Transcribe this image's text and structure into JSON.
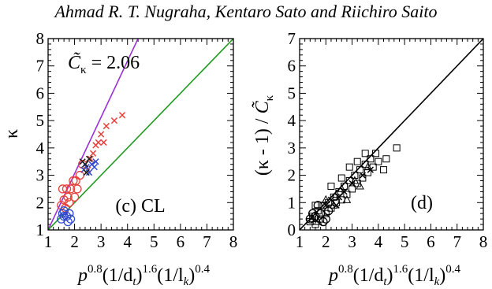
{
  "header": {
    "authors": "Ahmad R. T. Nugraha, Kentaro Sato and Riichiro Saito"
  },
  "chart_data": [
    {
      "type": "scatter",
      "panel_label": "(c) CL",
      "annotation": {
        "symbol": "C̃",
        "subscript": "κ",
        "value": "= 2.06"
      },
      "ylabel": "κ",
      "xlabel": {
        "base": "p",
        "exp1": "0.8",
        "mid1": "(1/d",
        "sub1": "t",
        "close1": ")",
        "exp2": "1.6",
        "mid2": "(1/l",
        "sub2": "k",
        "close2": ")",
        "exp3": "0.4"
      },
      "xlim": [
        1,
        8
      ],
      "ylim": [
        1,
        8
      ],
      "xticks": [
        "1",
        "2",
        "3",
        "4",
        "5",
        "6",
        "7",
        "8"
      ],
      "yticks": [
        "1",
        "2",
        "3",
        "4",
        "5",
        "6",
        "7",
        "8"
      ],
      "lines": [
        {
          "color": "#9b30d9",
          "slope": 2.06
        },
        {
          "color": "#1f9a1f",
          "slope": 1.0
        }
      ],
      "series": [
        {
          "marker": "circle",
          "color": "#e8403a",
          "points": [
            [
              1.5,
              1.9
            ],
            [
              1.6,
              2.1
            ],
            [
              1.55,
              2.5
            ],
            [
              1.7,
              2.5
            ],
            [
              1.75,
              2.2
            ],
            [
              1.85,
              2.5
            ],
            [
              1.95,
              2.8
            ],
            [
              2.05,
              2.8
            ],
            [
              2.1,
              2.5
            ],
            [
              2.2,
              3.0
            ],
            [
              2.3,
              3.4
            ],
            [
              1.65,
              1.8
            ],
            [
              2.0,
              2.2
            ],
            [
              1.8,
              2.0
            ]
          ]
        },
        {
          "marker": "circle",
          "color": "#2f49d1",
          "points": [
            [
              1.5,
              1.4
            ],
            [
              1.6,
              1.5
            ],
            [
              1.7,
              1.5
            ],
            [
              1.8,
              1.6
            ],
            [
              1.85,
              1.4
            ],
            [
              1.6,
              1.7
            ],
            [
              1.75,
              1.3
            ],
            [
              1.55,
              1.6
            ]
          ]
        },
        {
          "marker": "x",
          "color": "#e8403a",
          "points": [
            [
              2.5,
              3.2
            ],
            [
              2.6,
              3.6
            ],
            [
              2.7,
              3.8
            ],
            [
              2.8,
              4.1
            ],
            [
              2.9,
              4.2
            ],
            [
              3.0,
              4.5
            ],
            [
              3.1,
              4.2
            ],
            [
              3.2,
              4.8
            ],
            [
              3.5,
              5.0
            ],
            [
              3.8,
              5.2
            ]
          ]
        },
        {
          "marker": "x",
          "color": "#2f49d1",
          "points": [
            [
              2.35,
              3.2
            ],
            [
              2.45,
              3.3
            ],
            [
              2.55,
              3.1
            ],
            [
              2.65,
              3.4
            ],
            [
              2.8,
              3.5
            ],
            [
              2.75,
              3.3
            ]
          ]
        },
        {
          "marker": "x",
          "color": "#222222",
          "points": [
            [
              2.3,
              3.5
            ],
            [
              2.4,
              3.4
            ],
            [
              2.55,
              3.6
            ],
            [
              2.45,
              3.1
            ]
          ]
        }
      ]
    },
    {
      "type": "scatter",
      "panel_label": "(d)",
      "ylabel": {
        "prefix": "(κ - 1) / ",
        "symbol": "C̃",
        "subscript": "κ"
      },
      "xlabel": {
        "base": "p",
        "exp1": "0.8",
        "mid1": "(1/d",
        "sub1": "t",
        "close1": ")",
        "exp2": "1.6",
        "mid2": "(1/l",
        "sub2": "k",
        "close2": ")",
        "exp3": "0.4"
      },
      "xlim": [
        1,
        8
      ],
      "ylim": [
        0,
        7
      ],
      "xticks": [
        "1",
        "2",
        "3",
        "4",
        "5",
        "6",
        "7",
        "8"
      ],
      "yticks": [
        "0",
        "1",
        "2",
        "3",
        "4",
        "5",
        "6",
        "7"
      ],
      "lines": [
        {
          "color": "#000000",
          "slope": 1.0
        }
      ],
      "series": [
        {
          "marker": "square",
          "color": "#000000",
          "points": [
            [
              1.4,
              0.3
            ],
            [
              1.5,
              0.5
            ],
            [
              1.6,
              0.2
            ],
            [
              1.7,
              0.7
            ],
            [
              1.8,
              0.4
            ],
            [
              1.9,
              0.9
            ],
            [
              2.0,
              0.6
            ],
            [
              2.1,
              1.0
            ],
            [
              2.2,
              0.8
            ],
            [
              2.3,
              1.2
            ],
            [
              2.4,
              1.0
            ],
            [
              2.5,
              1.4
            ],
            [
              2.6,
              1.1
            ],
            [
              2.7,
              1.6
            ],
            [
              2.8,
              1.3
            ],
            [
              2.9,
              1.8
            ],
            [
              3.0,
              1.5
            ],
            [
              3.1,
              2.0
            ],
            [
              3.2,
              1.7
            ],
            [
              3.3,
              2.2
            ],
            [
              3.4,
              1.9
            ],
            [
              3.5,
              2.4
            ],
            [
              3.6,
              2.1
            ],
            [
              3.7,
              2.6
            ],
            [
              3.8,
              2.3
            ],
            [
              3.9,
              2.8
            ],
            [
              4.0,
              2.5
            ],
            [
              4.2,
              2.2
            ],
            [
              4.3,
              2.6
            ],
            [
              4.7,
              3.0
            ],
            [
              3.5,
              2.8
            ],
            [
              3.2,
              2.5
            ],
            [
              2.6,
              1.9
            ],
            [
              2.9,
              2.3
            ],
            [
              1.6,
              0.9
            ],
            [
              2.2,
              1.6
            ]
          ]
        },
        {
          "marker": "triangle",
          "color": "#000000",
          "points": [
            [
              1.5,
              0.4
            ],
            [
              1.7,
              0.3
            ],
            [
              2.0,
              1.1
            ],
            [
              2.3,
              0.9
            ],
            [
              2.6,
              1.5
            ],
            [
              2.8,
              1.1
            ],
            [
              3.1,
              1.8
            ],
            [
              3.3,
              1.6
            ],
            [
              3.6,
              2.3
            ],
            [
              2.4,
              1.3
            ]
          ]
        },
        {
          "marker": "circle",
          "color": "#000000",
          "points": [
            [
              1.5,
              0.6
            ],
            [
              1.6,
              0.5
            ],
            [
              1.8,
              0.6
            ],
            [
              2.0,
              0.4
            ],
            [
              1.7,
              0.9
            ],
            [
              1.9,
              0.3
            ],
            [
              2.1,
              0.7
            ],
            [
              1.4,
              0.4
            ]
          ]
        },
        {
          "marker": "x",
          "color": "#000000",
          "points": [
            [
              2.0,
              0.9
            ],
            [
              2.2,
              1.1
            ],
            [
              2.5,
              1.2
            ],
            [
              2.7,
              1.4
            ],
            [
              3.0,
              1.7
            ],
            [
              3.4,
              2.0
            ],
            [
              3.7,
              2.2
            ],
            [
              2.4,
              0.9
            ]
          ]
        }
      ]
    }
  ]
}
